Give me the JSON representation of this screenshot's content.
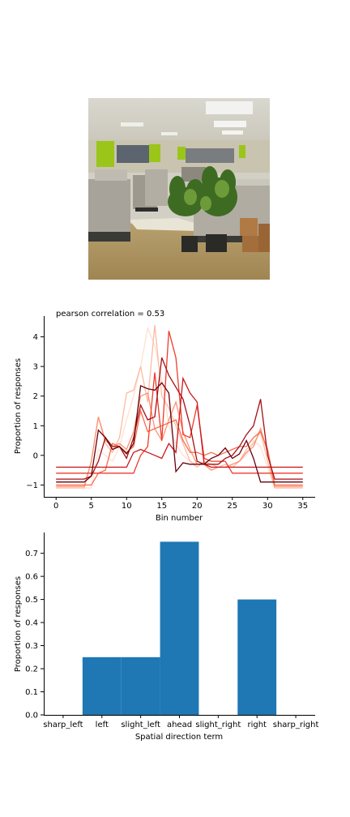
{
  "chart_data": [
    {
      "type": "line",
      "title": "pearson correlation = 0.53",
      "xlabel": "Bin number",
      "ylabel": "Proportion of responses",
      "xlim": [
        -1.75,
        36.75
      ],
      "ylim": [
        -1.4,
        4.7
      ],
      "xticks": [
        0,
        5,
        10,
        15,
        20,
        25,
        30,
        35
      ],
      "yticks": [
        -1,
        0,
        1,
        2,
        3,
        4
      ],
      "grid": false,
      "series": [
        {
          "color": "#fee0d2",
          "x": [
            0,
            4,
            5,
            6,
            7,
            8,
            9,
            10,
            11,
            12,
            13,
            14,
            15,
            16,
            17,
            18,
            19,
            20,
            21,
            22,
            23,
            24,
            25,
            26,
            27,
            28,
            29,
            30,
            31,
            35
          ],
          "values": [
            -1.1,
            -1.1,
            -1.1,
            0.2,
            0.0,
            -0.2,
            0.3,
            1.2,
            2.0,
            3.0,
            4.3,
            3.7,
            2.6,
            1.0,
            0.4,
            0.0,
            -0.2,
            -0.3,
            -0.3,
            -0.4,
            -0.4,
            -0.4,
            -0.3,
            -0.2,
            0.0,
            0.5,
            0.3,
            -0.4,
            -1.1,
            -1.1
          ]
        },
        {
          "color": "#fcbba1",
          "x": [
            0,
            4,
            5,
            6,
            7,
            8,
            9,
            10,
            11,
            12,
            13,
            14,
            15,
            16,
            17,
            18,
            19,
            20,
            21,
            22,
            23,
            24,
            25,
            26,
            27,
            28,
            29,
            30,
            31,
            35
          ],
          "values": [
            -1.1,
            -1.1,
            -0.2,
            1.3,
            0.4,
            0.1,
            0.6,
            2.1,
            2.2,
            3.0,
            1.8,
            4.4,
            2.0,
            1.6,
            1.0,
            0.4,
            -0.2,
            -0.4,
            -0.2,
            -0.3,
            -0.4,
            -0.3,
            -0.4,
            -0.2,
            0.2,
            0.4,
            0.8,
            -0.2,
            -1.1,
            -1.1
          ]
        },
        {
          "color": "#fc9272",
          "x": [
            0,
            4,
            5,
            6,
            7,
            8,
            9,
            10,
            11,
            12,
            13,
            14,
            15,
            16,
            17,
            18,
            19,
            20,
            21,
            22,
            23,
            24,
            25,
            26,
            27,
            28,
            29,
            30,
            31,
            35
          ],
          "values": [
            -1.05,
            -1.05,
            -0.2,
            1.3,
            0.5,
            0.3,
            0.4,
            0.2,
            0.8,
            2.0,
            2.1,
            0.9,
            0.5,
            1.2,
            1.8,
            0.8,
            0.2,
            -0.3,
            -0.3,
            -0.5,
            -0.4,
            -0.4,
            -0.3,
            -0.2,
            0.1,
            0.3,
            0.9,
            0.1,
            -1.05,
            -1.05
          ]
        },
        {
          "color": "#fb6a4a",
          "x": [
            0,
            5,
            6,
            7,
            8,
            9,
            10,
            11,
            12,
            13,
            14,
            15,
            16,
            17,
            18,
            19,
            20,
            21,
            22,
            23,
            24,
            25,
            26,
            27,
            28,
            29,
            30,
            31,
            35
          ],
          "values": [
            -1.0,
            -1.0,
            -0.6,
            -0.5,
            0.4,
            0.3,
            0.1,
            0.3,
            1.5,
            0.8,
            0.9,
            1.0,
            1.1,
            1.2,
            0.5,
            0.1,
            0.1,
            0.0,
            0.1,
            0.0,
            0.1,
            0.2,
            0.3,
            0.3,
            0.6,
            0.8,
            0.2,
            -1.0,
            -1.0
          ]
        },
        {
          "color": "#ef3b2c",
          "x": [
            0,
            10,
            11,
            12,
            13,
            14,
            15,
            16,
            17,
            18,
            19,
            20,
            21,
            22,
            23,
            24,
            25,
            26,
            27,
            28,
            29,
            30,
            31,
            35
          ],
          "values": [
            -0.6,
            -0.6,
            -0.6,
            0.0,
            0.3,
            2.8,
            0.5,
            4.2,
            3.3,
            0.7,
            0.6,
            1.7,
            -0.1,
            -0.2,
            -0.2,
            -0.2,
            -0.6,
            -0.6,
            -0.6,
            -0.6,
            -0.6,
            -0.6,
            -0.6,
            -0.6
          ]
        },
        {
          "color": "#cb181d",
          "x": [
            0,
            10,
            11,
            12,
            13,
            14,
            15,
            16,
            17,
            18,
            19,
            20,
            21,
            22,
            23,
            24,
            25,
            26,
            27,
            28,
            29,
            30,
            31,
            35
          ],
          "values": [
            -0.4,
            -0.4,
            0.1,
            0.2,
            0.1,
            0.0,
            -0.1,
            0.4,
            0.1,
            2.6,
            2.1,
            1.8,
            -0.3,
            -0.4,
            -0.4,
            -0.4,
            -0.4,
            -0.4,
            -0.4,
            -0.4,
            -0.4,
            -0.4,
            -0.4,
            -0.4
          ]
        },
        {
          "color": "#a50f15",
          "x": [
            0,
            4,
            5,
            6,
            7,
            8,
            9,
            10,
            11,
            12,
            13,
            14,
            15,
            16,
            17,
            18,
            19,
            20,
            21,
            22,
            23,
            24,
            25,
            26,
            27,
            28,
            29,
            30,
            31,
            35
          ],
          "values": [
            -0.8,
            -0.8,
            -0.7,
            -0.2,
            0.6,
            0.3,
            0.3,
            -0.1,
            0.6,
            1.7,
            1.2,
            1.3,
            3.3,
            2.7,
            2.3,
            1.9,
            1.0,
            -0.2,
            -0.3,
            -0.3,
            -0.3,
            -0.1,
            0.0,
            0.3,
            0.7,
            1.0,
            1.9,
            0.0,
            -0.8,
            -0.8
          ]
        },
        {
          "color": "#67000d",
          "x": [
            0,
            4,
            5,
            6,
            7,
            8,
            9,
            10,
            11,
            12,
            13,
            14,
            15,
            16,
            17,
            18,
            19,
            20,
            21,
            22,
            23,
            24,
            25,
            26,
            27,
            28,
            29,
            30,
            31,
            35
          ],
          "values": [
            -0.9,
            -0.9,
            -0.7,
            0.85,
            0.6,
            0.2,
            0.3,
            0.05,
            0.4,
            2.35,
            2.25,
            2.2,
            2.45,
            2.1,
            -0.55,
            -0.25,
            -0.3,
            -0.3,
            -0.3,
            -0.1,
            0.0,
            0.25,
            -0.1,
            0.05,
            0.5,
            -0.1,
            -0.9,
            -0.9,
            -0.9,
            -0.9
          ]
        }
      ]
    },
    {
      "type": "bar",
      "xlabel": "Spatial direction term",
      "ylabel": "Proportion of responses",
      "categories": [
        "sharp_left",
        "left",
        "slight_left",
        "ahead",
        "slight_right",
        "right",
        "sharp_right"
      ],
      "values": [
        0.0,
        0.25,
        0.25,
        0.75,
        0.0,
        0.5,
        0.0
      ],
      "ylim": [
        0,
        0.79
      ],
      "yticks": [
        "0.0",
        "0.1",
        "0.2",
        "0.3",
        "0.4",
        "0.5",
        "0.6",
        "0.7"
      ],
      "color": "#1f77b4",
      "grid": false
    }
  ]
}
